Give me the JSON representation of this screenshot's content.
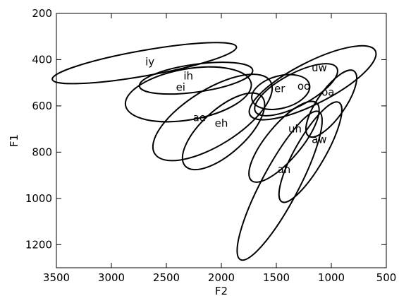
{
  "chart_data": {
    "type": "scatter",
    "title": "",
    "xlabel": "F2",
    "ylabel": "F1",
    "xlim": [
      3500,
      500
    ],
    "ylim": [
      1300,
      200
    ],
    "x_reversed": true,
    "y_reversed": true,
    "x_ticks": [
      3500,
      3000,
      2500,
      2000,
      1500,
      1000,
      500
    ],
    "y_ticks": [
      200,
      400,
      600,
      800,
      1000,
      1200
    ],
    "grid": false,
    "series": [
      {
        "name": "iy",
        "center": {
          "F2": 2700,
          "F1": 415
        },
        "label_at": {
          "F2": 2650,
          "F1": 410
        },
        "semi_major_F2": 850,
        "semi_minor_F1": 55,
        "rotation_deg": -10
      },
      {
        "name": "ih",
        "center": {
          "F2": 2230,
          "F1": 480
        },
        "label_at": {
          "F2": 2300,
          "F1": 470
        },
        "semi_major_F2": 520,
        "semi_minor_F1": 60,
        "rotation_deg": -8
      },
      {
        "name": "ei",
        "center": {
          "F2": 2300,
          "F1": 550
        },
        "label_at": {
          "F2": 2370,
          "F1": 520
        },
        "semi_major_F2": 580,
        "semi_minor_F1": 110,
        "rotation_deg": -10
      },
      {
        "name": "ae",
        "center": {
          "F2": 2080,
          "F1": 650
        },
        "label_at": {
          "F2": 2200,
          "F1": 650
        },
        "semi_major_F2": 620,
        "semi_minor_F1": 120,
        "rotation_deg": -32
      },
      {
        "name": "eh",
        "center": {
          "F2": 1980,
          "F1": 710
        },
        "label_at": {
          "F2": 2000,
          "F1": 675
        },
        "semi_major_F2": 470,
        "semi_minor_F1": 95,
        "rotation_deg": -42
      },
      {
        "name": "er",
        "center": {
          "F2": 1460,
          "F1": 540
        },
        "label_at": {
          "F2": 1470,
          "F1": 525
        },
        "semi_major_F2": 270,
        "semi_minor_F1": 70,
        "rotation_deg": -15
      },
      {
        "name": "oo",
        "center": {
          "F2": 1320,
          "F1": 530
        },
        "label_at": {
          "F2": 1250,
          "F1": 515
        },
        "semi_major_F2": 420,
        "semi_minor_F1": 70,
        "rotation_deg": -28
      },
      {
        "name": "uw",
        "center": {
          "F2": 1170,
          "F1": 500
        },
        "label_at": {
          "F2": 1110,
          "F1": 435
        },
        "semi_major_F2": 640,
        "semi_minor_F1": 90,
        "rotation_deg": -27
      },
      {
        "name": "oa",
        "center": {
          "F2": 1000,
          "F1": 590
        },
        "label_at": {
          "F2": 1030,
          "F1": 540
        },
        "semi_major_F2": 360,
        "semi_minor_F1": 60,
        "rotation_deg": -55
      },
      {
        "name": "uh",
        "center": {
          "F2": 1430,
          "F1": 755
        },
        "label_at": {
          "F2": 1330,
          "F1": 700
        },
        "semi_major_F2": 460,
        "semi_minor_F1": 75,
        "rotation_deg": -50
      },
      {
        "name": "aw",
        "center": {
          "F2": 1190,
          "F1": 800
        },
        "label_at": {
          "F2": 1110,
          "F1": 745
        },
        "semi_major_F2": 520,
        "semi_minor_F1": 65,
        "rotation_deg": -60
      },
      {
        "name": "ah",
        "center": {
          "F2": 1470,
          "F1": 945
        },
        "label_at": {
          "F2": 1430,
          "F1": 875
        },
        "semi_major_F2": 760,
        "semi_minor_F1": 80,
        "rotation_deg": -62
      }
    ]
  }
}
